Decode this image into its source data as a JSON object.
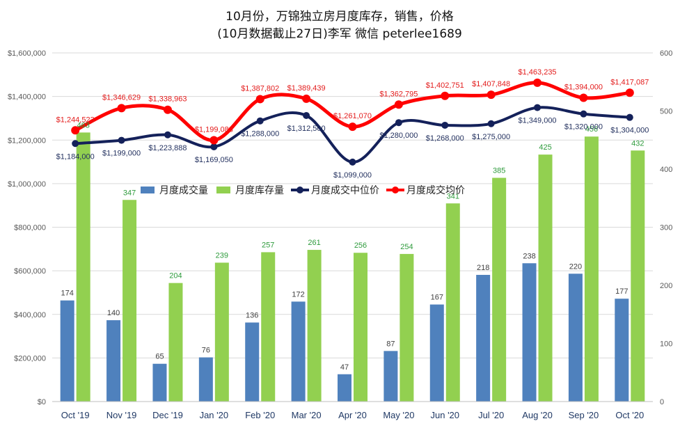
{
  "chart_data": {
    "type": "bar",
    "title": "10月份，万锦独立房月度库存，销售，价格",
    "subtitle": "(10月数据截止27日)李军  微信 peterlee1689",
    "categories": [
      "Oct '19",
      "Nov '19",
      "Dec '19",
      "Jan '20",
      "Feb '20",
      "Mar '20",
      "Apr '20",
      "May '20",
      "Jun '20",
      "Jul '20",
      "Aug '20",
      "Sep '20",
      "Oct '20"
    ],
    "y_left": {
      "ticks": [
        "$0",
        "$200,000",
        "$400,000",
        "$600,000",
        "$800,000",
        "$1,000,000",
        "$1,200,000",
        "$1,400,000",
        "$1,600,000"
      ],
      "ylim": [
        0,
        1600000
      ]
    },
    "y_right": {
      "ticks": [
        "0",
        "100",
        "200",
        "300",
        "400",
        "500",
        "600"
      ],
      "ylim": [
        0,
        600
      ]
    },
    "grid": true,
    "legend_position": "center",
    "series": [
      {
        "name": "月度成交量",
        "kind": "bar",
        "axis": "right",
        "color": "#4f81bd",
        "values": [
          174,
          140,
          65,
          76,
          136,
          172,
          47,
          87,
          167,
          218,
          238,
          220,
          177
        ],
        "labels": [
          "174",
          "140",
          "65",
          "76",
          "136",
          "172",
          "47",
          "87",
          "167",
          "218",
          "238",
          "220",
          "177"
        ]
      },
      {
        "name": "月度库存量",
        "kind": "bar",
        "axis": "right",
        "color": "#92d050",
        "values": [
          463,
          347,
          204,
          239,
          257,
          261,
          256,
          254,
          341,
          385,
          425,
          456,
          432
        ],
        "labels": [
          "463",
          "347",
          "204",
          "239",
          "257",
          "261",
          "256",
          "254",
          "341",
          "385",
          "425",
          "456",
          "432"
        ]
      },
      {
        "name": "月度成交中位价",
        "kind": "line",
        "axis": "left",
        "color": "#14215a",
        "values": [
          1184000,
          1199000,
          1223888,
          1169050,
          1288000,
          1312500,
          1099000,
          1280000,
          1268000,
          1275000,
          1349000,
          1320000,
          1304000
        ],
        "labels": [
          "$1,184,000",
          "$1,199,000",
          "$1,223,888",
          "$1,169,050",
          "$1,288,000",
          "$1,312,500",
          "$1,099,000",
          "$1,280,000",
          "$1,268,000",
          "$1,275,000",
          "$1,349,000",
          "$1,320,000",
          "$1,304,000"
        ]
      },
      {
        "name": "月度成交均价",
        "kind": "line",
        "axis": "left",
        "color": "#ff0000",
        "values": [
          1244523,
          1346629,
          1338963,
          1199083,
          1387802,
          1389439,
          1261070,
          1362795,
          1402751,
          1407848,
          1463235,
          1394000,
          1417087
        ],
        "labels": [
          "$1,244,523",
          "$1,346,629",
          "$1,338,963",
          "$1,199,083",
          "$1,387,802",
          "$1,389,439",
          "$1,261,070",
          "$1,362,795",
          "$1,402,751",
          "$1,407,848",
          "$1,463,235",
          "$1,394,000",
          "$1,417,087"
        ]
      }
    ]
  }
}
